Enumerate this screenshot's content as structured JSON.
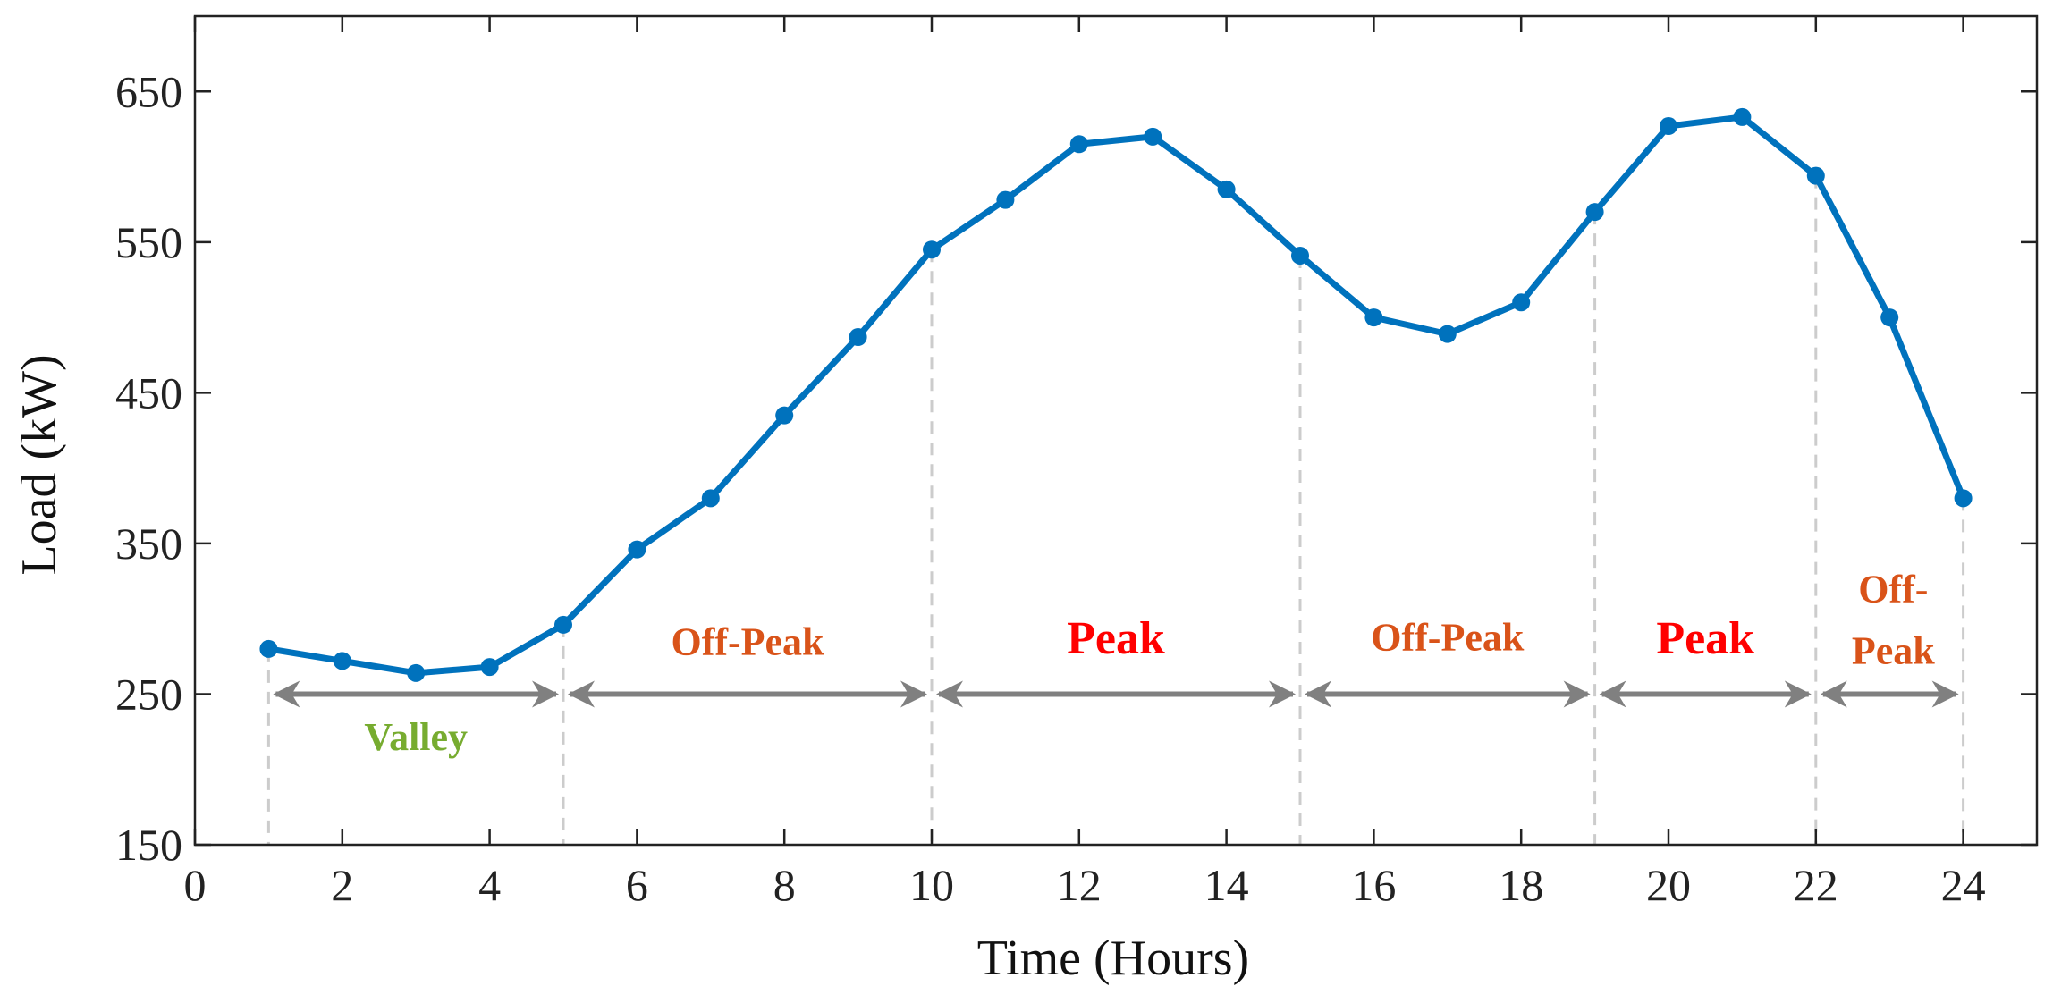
{
  "chart_data": {
    "type": "line",
    "title": "",
    "xlabel": "Time (Hours)",
    "ylabel": "Load (kW)",
    "xlim": [
      0,
      25
    ],
    "ylim": [
      150,
      700
    ],
    "xticks": [
      0,
      2,
      4,
      6,
      8,
      10,
      12,
      14,
      16,
      18,
      20,
      22,
      24
    ],
    "yticks": [
      150,
      250,
      350,
      450,
      550,
      650
    ],
    "grid": false,
    "series": [
      {
        "name": "Load",
        "color": "#0072BD",
        "x": [
          1,
          2,
          3,
          4,
          5,
          6,
          7,
          8,
          9,
          10,
          11,
          12,
          13,
          14,
          15,
          16,
          17,
          18,
          19,
          20,
          21,
          22,
          23,
          24
        ],
        "values": [
          280,
          272,
          264,
          268,
          296,
          346,
          380,
          435,
          487,
          545,
          578,
          615,
          620,
          585,
          541,
          500,
          489,
          510,
          570,
          627,
          633,
          594,
          500,
          380
        ]
      }
    ],
    "boundaries": [
      1,
      5,
      10,
      15,
      19,
      22,
      24
    ],
    "arrow_y": 250,
    "periods": [
      {
        "label": "Valley",
        "start": 1,
        "end": 5,
        "color": "#77AC30",
        "label_x": 3,
        "label_y": 213
      },
      {
        "label": "Off-Peak",
        "start": 5,
        "end": 10,
        "color": "#D95319",
        "label_x": 7.5,
        "label_y": 276
      },
      {
        "label": "Peak",
        "start": 10,
        "end": 15,
        "color": "#FF0000",
        "label_x": 12.5,
        "label_y": 277,
        "big": true
      },
      {
        "label": "Off-Peak",
        "start": 15,
        "end": 19,
        "color": "#D95319",
        "label_x": 17,
        "label_y": 279
      },
      {
        "label": "Peak",
        "start": 19,
        "end": 22,
        "color": "#FF0000",
        "label_x": 20.5,
        "label_y": 277,
        "big": true
      },
      {
        "label": "Off-",
        "start": 22,
        "end": 24,
        "color": "#D95319",
        "label_x": 23.05,
        "label_y": 311
      },
      {
        "label": "Peak",
        "start": 22,
        "end": 24,
        "color": "#D95319",
        "label_x": 23.05,
        "label_y": 270,
        "no_arrow": true
      }
    ],
    "arrow_color": "#808080",
    "boundary_color": "#CCCCCC"
  }
}
